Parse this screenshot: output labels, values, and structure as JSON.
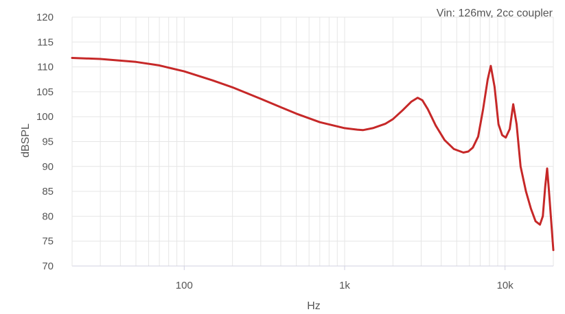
{
  "chart_data": {
    "type": "line",
    "annotation": "Vin: 126mv, 2cc coupler",
    "xlabel": "Hz",
    "ylabel": "dBSPL",
    "x_scale": "log",
    "xlim": [
      20,
      20000
    ],
    "ylim": [
      70,
      120
    ],
    "x_ticks": [
      {
        "value": 100,
        "label": "100"
      },
      {
        "value": 1000,
        "label": "1k"
      },
      {
        "value": 10000,
        "label": "10k"
      }
    ],
    "y_ticks": [
      {
        "value": 70,
        "label": "70"
      },
      {
        "value": 75,
        "label": "75"
      },
      {
        "value": 80,
        "label": "80"
      },
      {
        "value": 85,
        "label": "85"
      },
      {
        "value": 90,
        "label": "90"
      },
      {
        "value": 95,
        "label": "95"
      },
      {
        "value": 100,
        "label": "100"
      },
      {
        "value": 105,
        "label": "105"
      },
      {
        "value": 110,
        "label": "110"
      },
      {
        "value": 115,
        "label": "115"
      },
      {
        "value": 120,
        "label": "120"
      }
    ],
    "grid": true,
    "colors": {
      "line": "#c62828",
      "grid": "#e6e6e6",
      "axis": "#d0d0e0"
    },
    "series": [
      {
        "x": [
          20,
          30,
          50,
          70,
          100,
          150,
          200,
          300,
          400,
          500,
          700,
          1000,
          1200,
          1300,
          1500,
          1800,
          2000,
          2300,
          2600,
          2850,
          3050,
          3300,
          3700,
          4200,
          4800,
          5500,
          5900,
          6300,
          6800,
          7300,
          7800,
          8150,
          8600,
          9100,
          9600,
          10100,
          10700,
          11250,
          11800,
          12500,
          13500,
          14500,
          15500,
          16500,
          17200,
          17800,
          18300,
          18800,
          19400,
          20000
        ],
        "y": [
          111.8,
          111.6,
          111.0,
          110.3,
          109.1,
          107.3,
          105.9,
          103.6,
          101.9,
          100.6,
          98.9,
          97.7,
          97.4,
          97.3,
          97.7,
          98.6,
          99.5,
          101.3,
          103.0,
          103.8,
          103.3,
          101.5,
          98.2,
          95.3,
          93.5,
          92.8,
          93.0,
          93.8,
          96.0,
          101.5,
          107.5,
          110.2,
          106.0,
          98.5,
          96.3,
          95.8,
          97.5,
          102.5,
          98.5,
          90.0,
          85.0,
          81.5,
          79.0,
          78.3,
          80.0,
          86.0,
          89.6,
          85.0,
          79.0,
          73.2
        ]
      }
    ]
  }
}
